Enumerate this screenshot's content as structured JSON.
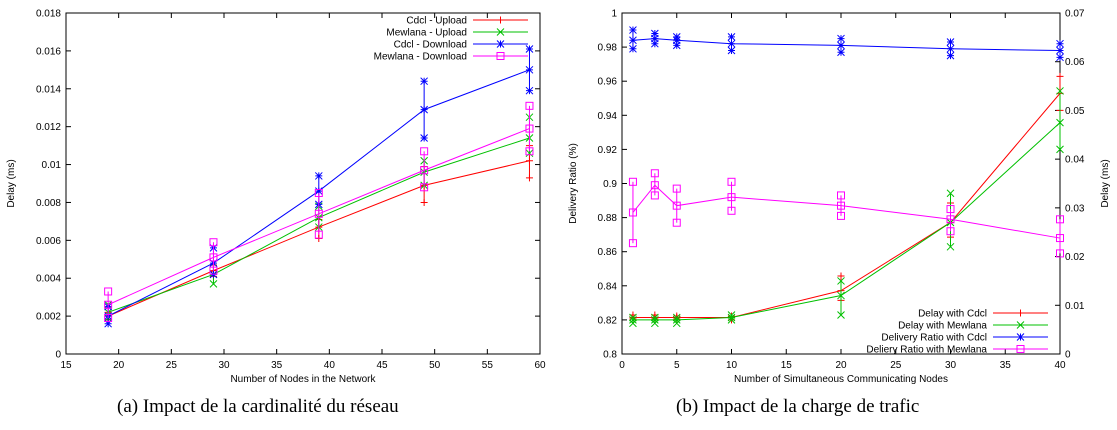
{
  "chart_data": [
    {
      "type": "line",
      "xlabel": "Number of Nodes in the Network",
      "ylabel": "Delay (ms)",
      "xlim": [
        15,
        60
      ],
      "ylim": [
        0,
        0.018
      ],
      "xticks": [
        15,
        20,
        25,
        30,
        35,
        40,
        45,
        50,
        55,
        60
      ],
      "yticks": [
        0,
        0.002,
        0.004,
        0.006,
        0.008,
        0.01,
        0.012,
        0.014,
        0.016,
        0.018
      ],
      "grid": false,
      "legend": "top-right",
      "x": [
        19,
        29,
        39,
        49,
        59
      ],
      "series": [
        {
          "name": "Cdcl - Upload",
          "color": "#ff0000",
          "marker": "plus",
          "values": [
            0.002,
            0.0044,
            0.0067,
            0.0089,
            0.0102
          ],
          "err": [
            [
              0.0018,
              0.0022
            ],
            [
              0.0041,
              0.0047
            ],
            [
              0.0061,
              0.0071
            ],
            [
              0.008,
              0.0099
            ],
            [
              0.0093,
              0.011
            ]
          ]
        },
        {
          "name": "Mewlana - Upload",
          "color": "#00c000",
          "marker": "cross",
          "values": [
            0.0022,
            0.0042,
            0.0072,
            0.0096,
            0.0114
          ],
          "err": [
            [
              0.0019,
              0.0026
            ],
            [
              0.0037,
              0.0048
            ],
            [
              0.0067,
              0.0078
            ],
            [
              0.0089,
              0.0102
            ],
            [
              0.0106,
              0.0125
            ]
          ]
        },
        {
          "name": "Cdcl - Download",
          "color": "#0000ff",
          "marker": "star",
          "values": [
            0.002,
            0.0048,
            0.0086,
            0.0129,
            0.015
          ],
          "err": [
            [
              0.0016,
              0.0025
            ],
            [
              0.0042,
              0.0056
            ],
            [
              0.0079,
              0.0094
            ],
            [
              0.0114,
              0.0144
            ],
            [
              0.0139,
              0.0161
            ]
          ]
        },
        {
          "name": "Mewlana - Download",
          "color": "#ff00ff",
          "marker": "square",
          "values": [
            0.0026,
            0.0051,
            0.0074,
            0.0097,
            0.0119
          ],
          "err": [
            [
              0.0019,
              0.0033
            ],
            [
              0.0044,
              0.0059
            ],
            [
              0.0063,
              0.0085
            ],
            [
              0.0088,
              0.0107
            ],
            [
              0.0107,
              0.0131
            ]
          ]
        }
      ]
    },
    {
      "type": "line",
      "xlabel": "Number of Simultaneous Communicating Nodes",
      "ylabel": "Delivery Ratio (%)",
      "y2label": "Delay (ms)",
      "xlim": [
        0,
        40
      ],
      "ylim": [
        0.8,
        1
      ],
      "y2lim": [
        0,
        0.07
      ],
      "xticks": [
        0,
        5,
        10,
        15,
        20,
        25,
        30,
        35,
        40
      ],
      "yticks": [
        0.8,
        0.82,
        0.84,
        0.86,
        0.88,
        0.9,
        0.92,
        0.94,
        0.96,
        0.98,
        1
      ],
      "y2ticks": [
        0,
        0.01,
        0.02,
        0.03,
        0.04,
        0.05,
        0.06,
        0.07
      ],
      "grid": false,
      "legend": "bottom-right",
      "x": [
        1,
        3,
        5,
        10,
        20,
        30,
        40
      ],
      "series": [
        {
          "name": "Delay with Cdcl",
          "color": "#ff0000",
          "marker": "plus",
          "axis": "right",
          "values": [
            0.0075,
            0.0075,
            0.0075,
            0.0075,
            0.013,
            0.027,
            0.0535
          ],
          "err": [
            [
              0.0072,
              0.008
            ],
            [
              0.0072,
              0.008
            ],
            [
              0.0072,
              0.0078
            ],
            [
              0.007,
              0.0078
            ],
            [
              0.011,
              0.016
            ],
            [
              0.024,
              0.031
            ],
            [
              0.05,
              0.057
            ]
          ]
        },
        {
          "name": "Delay with Mewlana",
          "color": "#00c000",
          "marker": "cross",
          "axis": "right",
          "values": [
            0.007,
            0.007,
            0.007,
            0.0075,
            0.012,
            0.027,
            0.0475
          ],
          "err": [
            [
              0.0063,
              0.0075
            ],
            [
              0.0063,
              0.0075
            ],
            [
              0.0063,
              0.0075
            ],
            [
              0.007,
              0.008
            ],
            [
              0.008,
              0.015
            ],
            [
              0.022,
              0.033
            ],
            [
              0.042,
              0.054
            ]
          ]
        },
        {
          "name": "Delivery Ratio with Cdcl",
          "color": "#0000ff",
          "marker": "star",
          "axis": "left",
          "values": [
            0.984,
            0.985,
            0.984,
            0.982,
            0.981,
            0.979,
            0.978
          ],
          "err": [
            [
              0.979,
              0.99
            ],
            [
              0.982,
              0.988
            ],
            [
              0.981,
              0.986
            ],
            [
              0.978,
              0.986
            ],
            [
              0.977,
              0.985
            ],
            [
              0.975,
              0.983
            ],
            [
              0.974,
              0.982
            ]
          ]
        },
        {
          "name": "Deliery Ratio with Mewlana",
          "color": "#ff00ff",
          "marker": "square",
          "axis": "left",
          "values": [
            0.883,
            0.899,
            0.887,
            0.892,
            0.887,
            0.879,
            0.868
          ],
          "err": [
            [
              0.865,
              0.901
            ],
            [
              0.893,
              0.906
            ],
            [
              0.877,
              0.897
            ],
            [
              0.884,
              0.901
            ],
            [
              0.881,
              0.893
            ],
            [
              0.872,
              0.885
            ],
            [
              0.859,
              0.879
            ]
          ]
        }
      ]
    }
  ],
  "captions": [
    "(a)  Impact de la cardinalité du réseau",
    "(b)  Impact de la charge de trafic"
  ]
}
